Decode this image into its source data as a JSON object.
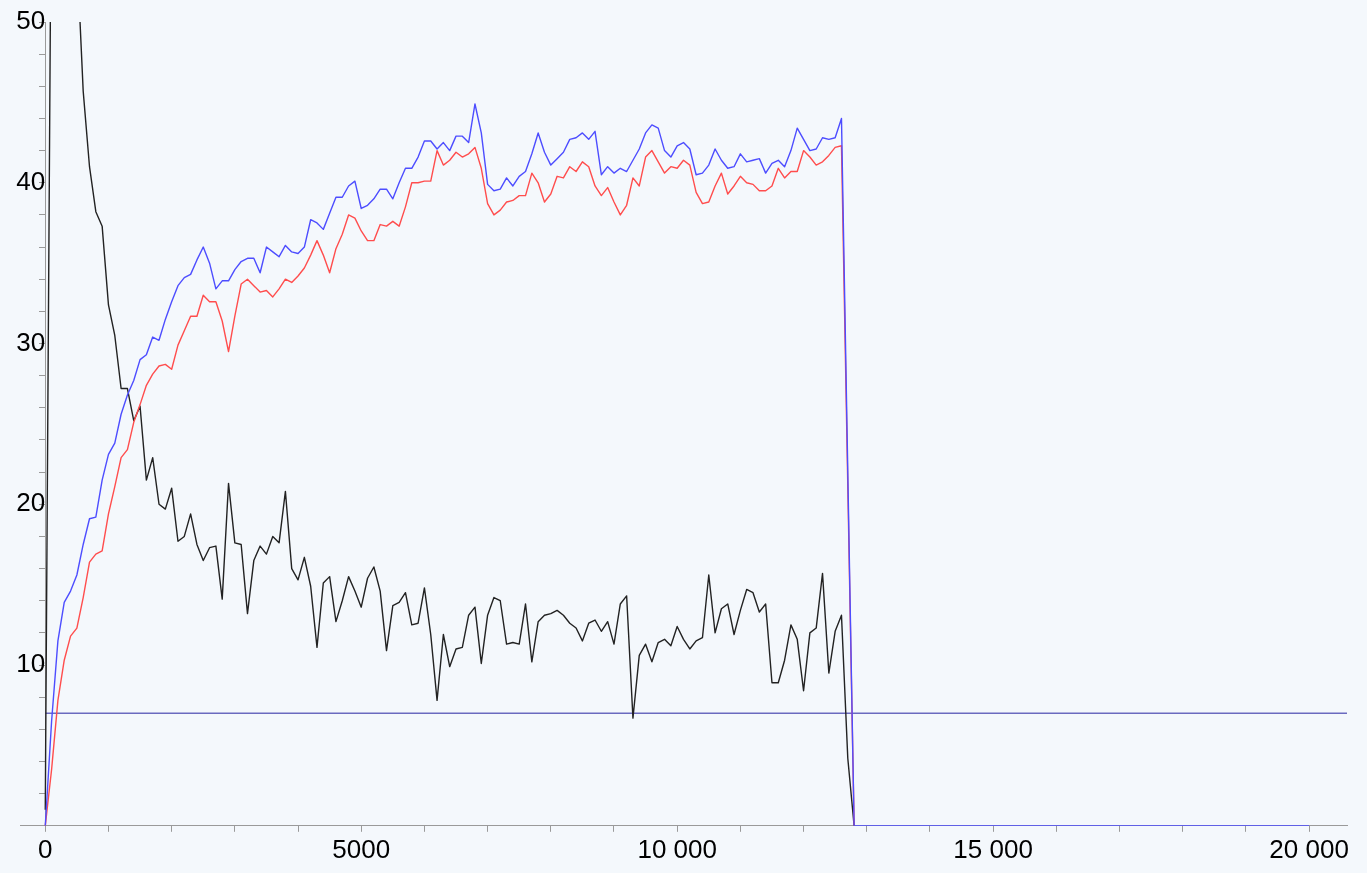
{
  "chart_data": {
    "type": "line",
    "xlim": [
      -400,
      20600
    ],
    "ylim": [
      0,
      50
    ],
    "xticks": [
      {
        "value": 0,
        "label": "0"
      },
      {
        "value": 1000,
        "label": null
      },
      {
        "value": 2000,
        "label": null
      },
      {
        "value": 3000,
        "label": null
      },
      {
        "value": 4000,
        "label": null
      },
      5000,
      {
        "value": 6000,
        "label": null
      },
      {
        "value": 7000,
        "label": null
      },
      {
        "value": 8000,
        "label": null
      },
      {
        "value": 9000,
        "label": null
      },
      {
        "value": 10000,
        "label": "10 000"
      },
      {
        "value": 11000,
        "label": null
      },
      {
        "value": 12000,
        "label": null
      },
      {
        "value": 13000,
        "label": null
      },
      {
        "value": 14000,
        "label": null
      },
      {
        "value": 15000,
        "label": "15 000"
      },
      {
        "value": 16000,
        "label": null
      },
      {
        "value": 17000,
        "label": null
      },
      {
        "value": 18000,
        "label": null
      },
      {
        "value": 19000,
        "label": null
      },
      {
        "value": 20000,
        "label": "20 000"
      }
    ],
    "yticks": [
      {
        "value": 2,
        "label": null
      },
      {
        "value": 4,
        "label": null
      },
      {
        "value": 6,
        "label": null
      },
      {
        "value": 8,
        "label": null
      },
      10,
      {
        "value": 12,
        "label": null
      },
      {
        "value": 14,
        "label": null
      },
      {
        "value": 16,
        "label": null
      },
      {
        "value": 18,
        "label": null
      },
      20,
      {
        "value": 22,
        "label": null
      },
      {
        "value": 24,
        "label": null
      },
      {
        "value": 26,
        "label": null
      },
      {
        "value": 28,
        "label": null
      },
      30,
      {
        "value": 32,
        "label": null
      },
      {
        "value": 34,
        "label": null
      },
      {
        "value": 36,
        "label": null
      },
      {
        "value": 38,
        "label": null
      },
      40,
      {
        "value": 42,
        "label": null
      },
      {
        "value": 44,
        "label": null
      },
      {
        "value": 46,
        "label": null
      },
      {
        "value": 48,
        "label": null
      },
      50
    ],
    "grid": false,
    "legend": false,
    "marker": "none",
    "line_style": "solid",
    "ref_lines": [
      {
        "axis": "y",
        "value": 7,
        "color": "#6a6abf"
      }
    ],
    "series": [
      {
        "color": "#4d4dff",
        "x": [
          0,
          100,
          200,
          300,
          400,
          500,
          600,
          700,
          800,
          900,
          1000,
          1100,
          1200,
          1300,
          1400,
          1500,
          1600,
          1700,
          1800,
          1900,
          2000,
          2100,
          2200,
          2300,
          2400,
          2500,
          2600,
          2700,
          2800,
          2900,
          3000,
          3100,
          3200,
          3300,
          3400,
          3500,
          3600,
          3700,
          3800,
          3900,
          4000,
          4100,
          4200,
          4300,
          4400,
          4500,
          4600,
          4700,
          4800,
          4900,
          5000,
          5100,
          5200,
          5300,
          5400,
          5500,
          5600,
          5700,
          5800,
          5900,
          6000,
          6100,
          6200,
          6300,
          6400,
          6500,
          6600,
          6700,
          6800,
          6900,
          7000,
          7100,
          7200,
          7300,
          7400,
          7500,
          7600,
          7700,
          7800,
          7900,
          8000,
          8100,
          8200,
          8300,
          8400,
          8500,
          8600,
          8700,
          8800,
          8900,
          9000,
          9100,
          9200,
          9300,
          9400,
          9500,
          9600,
          9700,
          9800,
          9900,
          10000,
          10100,
          10200,
          10300,
          10400,
          10500,
          10600,
          10700,
          10800,
          10900,
          11000,
          11100,
          11200,
          11300,
          11400,
          11500,
          11600,
          11700,
          11800,
          11900,
          12000,
          12100,
          12200,
          12300,
          12400,
          12500,
          12600,
          12800,
          20000
        ],
        "values": [
          0,
          6.5,
          11.5,
          13.9,
          14.6,
          15.6,
          17.5,
          19.1,
          19.2,
          21.5,
          23.1,
          23.8,
          25.6,
          26.8,
          27.7,
          29.0,
          29.3,
          30.4,
          30.2,
          31.5,
          32.6,
          33.6,
          34.1,
          34.3,
          35.2,
          36.0,
          35.0,
          33.4,
          33.9,
          33.9,
          34.6,
          35.1,
          35.3,
          35.3,
          34.4,
          36.0,
          35.7,
          35.4,
          36.1,
          35.7,
          35.6,
          36.0,
          37.7,
          37.5,
          37.1,
          38.1,
          39.1,
          39.1,
          39.8,
          40.1,
          38.4,
          38.6,
          39.0,
          39.6,
          39.6,
          39.0,
          40.0,
          40.9,
          40.9,
          41.6,
          42.6,
          42.6,
          42.1,
          42.5,
          42.0,
          42.9,
          42.9,
          42.5,
          44.9,
          43.1,
          39.9,
          39.5,
          39.6,
          40.3,
          39.8,
          40.4,
          40.7,
          41.8,
          43.1,
          41.9,
          41.1,
          41.5,
          41.9,
          42.7,
          42.8,
          43.1,
          42.7,
          43.2,
          40.5,
          41.0,
          40.6,
          40.9,
          40.7,
          41.4,
          42.1,
          43.1,
          43.6,
          43.4,
          42.0,
          41.6,
          42.3,
          42.5,
          42.1,
          40.5,
          40.6,
          41.1,
          42.1,
          41.4,
          40.9,
          41.0,
          41.8,
          41.3,
          41.4,
          41.5,
          40.6,
          41.2,
          41.4,
          41.0,
          42.0,
          43.4,
          42.7,
          42.0,
          42.1,
          42.8,
          42.7,
          42.8,
          44.0,
          0,
          0
        ]
      },
      {
        "color": "#ff4d4d",
        "x": [
          0,
          100,
          200,
          300,
          400,
          500,
          600,
          700,
          800,
          900,
          1000,
          1100,
          1200,
          1300,
          1400,
          1500,
          1600,
          1700,
          1800,
          1900,
          2000,
          2100,
          2200,
          2300,
          2400,
          2500,
          2600,
          2700,
          2800,
          2900,
          3000,
          3100,
          3200,
          3300,
          3400,
          3500,
          3600,
          3700,
          3800,
          3900,
          4000,
          4100,
          4200,
          4300,
          4400,
          4500,
          4600,
          4700,
          4800,
          4900,
          5000,
          5100,
          5200,
          5300,
          5400,
          5500,
          5600,
          5700,
          5800,
          5900,
          6000,
          6100,
          6200,
          6300,
          6400,
          6500,
          6600,
          6700,
          6800,
          6900,
          7000,
          7100,
          7200,
          7300,
          7400,
          7500,
          7600,
          7700,
          7800,
          7900,
          8000,
          8100,
          8200,
          8300,
          8400,
          8500,
          8600,
          8700,
          8800,
          8900,
          9000,
          9100,
          9200,
          9300,
          9400,
          9500,
          9600,
          9700,
          9800,
          9900,
          10000,
          10100,
          10200,
          10300,
          10400,
          10500,
          10600,
          10700,
          10800,
          10900,
          11000,
          11100,
          11200,
          11300,
          11400,
          11500,
          11600,
          11700,
          11800,
          11900,
          12000,
          12100,
          12200,
          12300,
          12400,
          12500,
          12600,
          12800
        ],
        "values": [
          0,
          3.5,
          7.8,
          10.3,
          11.8,
          12.3,
          14.2,
          16.4,
          16.9,
          17.1,
          19.4,
          21.1,
          22.9,
          23.4,
          25.1,
          26.2,
          27.4,
          28.1,
          28.6,
          28.7,
          28.4,
          29.9,
          30.8,
          31.7,
          31.7,
          33.0,
          32.6,
          32.6,
          31.4,
          29.5,
          31.7,
          33.7,
          34.0,
          33.6,
          33.2,
          33.3,
          32.9,
          33.4,
          34.0,
          33.8,
          34.2,
          34.7,
          35.5,
          36.4,
          35.5,
          34.4,
          35.9,
          36.8,
          38.0,
          37.8,
          37.0,
          36.4,
          36.4,
          37.4,
          37.3,
          37.6,
          37.3,
          38.5,
          40.0,
          40.0,
          40.1,
          40.1,
          42.0,
          41.1,
          41.4,
          41.9,
          41.6,
          41.8,
          42.2,
          40.9,
          38.7,
          38.0,
          38.3,
          38.8,
          38.9,
          39.2,
          39.2,
          40.6,
          40.0,
          38.8,
          39.3,
          40.4,
          40.3,
          41.0,
          40.7,
          41.3,
          41.0,
          39.8,
          39.2,
          39.7,
          38.8,
          38.0,
          38.6,
          40.3,
          39.8,
          41.6,
          42.0,
          41.3,
          40.6,
          41.0,
          40.9,
          41.4,
          41.1,
          39.4,
          38.7,
          38.8,
          39.8,
          40.6,
          39.3,
          39.8,
          40.4,
          40.0,
          39.9,
          39.5,
          39.5,
          39.8,
          40.9,
          40.3,
          40.7,
          40.7,
          42.0,
          41.6,
          41.1,
          41.3,
          41.7,
          42.2,
          42.3,
          0
        ]
      },
      {
        "color": "#222222",
        "x": [
          0,
          80,
          300,
          550,
          600,
          700,
          800,
          900,
          1000,
          1100,
          1200,
          1300,
          1400,
          1500,
          1600,
          1700,
          1800,
          1900,
          2000,
          2100,
          2200,
          2300,
          2400,
          2500,
          2600,
          2700,
          2800,
          2900,
          3000,
          3100,
          3200,
          3300,
          3400,
          3500,
          3600,
          3700,
          3800,
          3900,
          4000,
          4100,
          4200,
          4300,
          4400,
          4500,
          4600,
          4700,
          4800,
          4900,
          5000,
          5100,
          5200,
          5300,
          5400,
          5500,
          5600,
          5700,
          5800,
          5900,
          6000,
          6100,
          6200,
          6300,
          6400,
          6500,
          6600,
          6700,
          6800,
          6900,
          7000,
          7100,
          7200,
          7300,
          7400,
          7500,
          7600,
          7700,
          7800,
          7900,
          8000,
          8100,
          8200,
          8300,
          8400,
          8500,
          8600,
          8700,
          8800,
          8900,
          9000,
          9100,
          9200,
          9300,
          9400,
          9500,
          9600,
          9700,
          9800,
          9900,
          10000,
          10100,
          10200,
          10300,
          10400,
          10500,
          10600,
          10700,
          10800,
          10900,
          11000,
          11100,
          11200,
          11300,
          11400,
          11500,
          11600,
          11700,
          11800,
          11900,
          12000,
          12100,
          12200,
          12300,
          12400,
          12500,
          12600,
          12700,
          12800
        ],
        "values": [
          1,
          50,
          null,
          50,
          45.7,
          41.0,
          38.2,
          37.3,
          32.4,
          30.5,
          27.2,
          27.2,
          25.2,
          26.1,
          21.5,
          22.9,
          20.0,
          19.7,
          21.0,
          17.7,
          18.0,
          19.4,
          17.5,
          16.5,
          17.3,
          17.4,
          14.1,
          21.3,
          17.6,
          17.5,
          13.2,
          16.5,
          17.4,
          16.9,
          18.0,
          17.6,
          20.8,
          16.0,
          15.3,
          16.7,
          14.9,
          11.1,
          15.1,
          15.5,
          12.7,
          14.0,
          15.5,
          14.6,
          13.6,
          15.4,
          16.1,
          14.6,
          10.9,
          13.7,
          13.9,
          14.5,
          12.5,
          12.6,
          14.8,
          11.9,
          7.8,
          11.9,
          9.9,
          11.0,
          11.1,
          13.1,
          13.6,
          10.1,
          13.1,
          14.2,
          14.0,
          11.3,
          11.4,
          11.3,
          13.8,
          10.2,
          12.7,
          13.1,
          13.2,
          13.4,
          13.1,
          12.6,
          12.3,
          11.5,
          12.6,
          12.8,
          12.1,
          12.7,
          11.3,
          13.8,
          14.3,
          6.7,
          10.6,
          11.3,
          10.2,
          11.4,
          11.6,
          11.2,
          12.4,
          11.6,
          11.0,
          11.5,
          11.7,
          15.6,
          12.0,
          13.5,
          13.8,
          11.9,
          13.4,
          14.7,
          14.5,
          13.3,
          13.8,
          8.9,
          8.9,
          10.3,
          12.5,
          11.6,
          8.4,
          12.0,
          12.3,
          15.7,
          9.5,
          12.1,
          13.1,
          4.2,
          0
        ]
      }
    ]
  }
}
